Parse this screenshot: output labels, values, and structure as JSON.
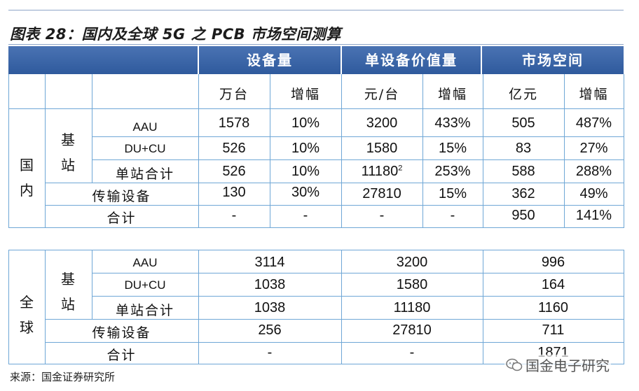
{
  "title": "图表 28：国内及全球 5G 之 PCB 市场空间测算",
  "header": {
    "col_groups": [
      "设备量",
      "单设备价值量",
      "市场空间"
    ]
  },
  "units": [
    "万台",
    "增幅",
    "元/台",
    "增幅",
    "亿元",
    "增幅"
  ],
  "domestic": {
    "region": "国内",
    "base_station": "基站",
    "rows": [
      {
        "label": "AAU",
        "cells": [
          "1578",
          "10%",
          "3200",
          "433%",
          "505",
          "487%"
        ]
      },
      {
        "label": "DU+CU",
        "cells": [
          "526",
          "10%",
          "1580",
          "15%",
          "83",
          "27%"
        ]
      },
      {
        "label": "单站合计",
        "cells": [
          "526",
          "10%",
          "11180",
          "253%",
          "588",
          "288%"
        ],
        "price_sup": "2"
      },
      {
        "label": "传输设备",
        "cells": [
          "130",
          "30%",
          "27810",
          "15%",
          "362",
          "49%"
        ]
      },
      {
        "label": "合计",
        "cells": [
          "-",
          "-",
          "-",
          "-",
          "950",
          "141%"
        ]
      }
    ]
  },
  "global": {
    "region": "全球",
    "base_station": "基站",
    "rows": [
      {
        "label": "AAU",
        "cells": [
          "3114",
          "3200",
          "996"
        ]
      },
      {
        "label": "DU+CU",
        "cells": [
          "1038",
          "1580",
          "164"
        ]
      },
      {
        "label": "单站合计",
        "cells": [
          "1038",
          "11180",
          "1160"
        ]
      },
      {
        "label": "传输设备",
        "cells": [
          "256",
          "27810",
          "711"
        ]
      },
      {
        "label": "合计",
        "cells": [
          "-",
          "-",
          "1871"
        ]
      }
    ]
  },
  "source": "来源：国金证券研究所",
  "watermark": "国金电子研究",
  "colors": {
    "header_bg": "#3a65a8",
    "grid": "#6fa7d6",
    "rule": "#8fa6c7"
  }
}
